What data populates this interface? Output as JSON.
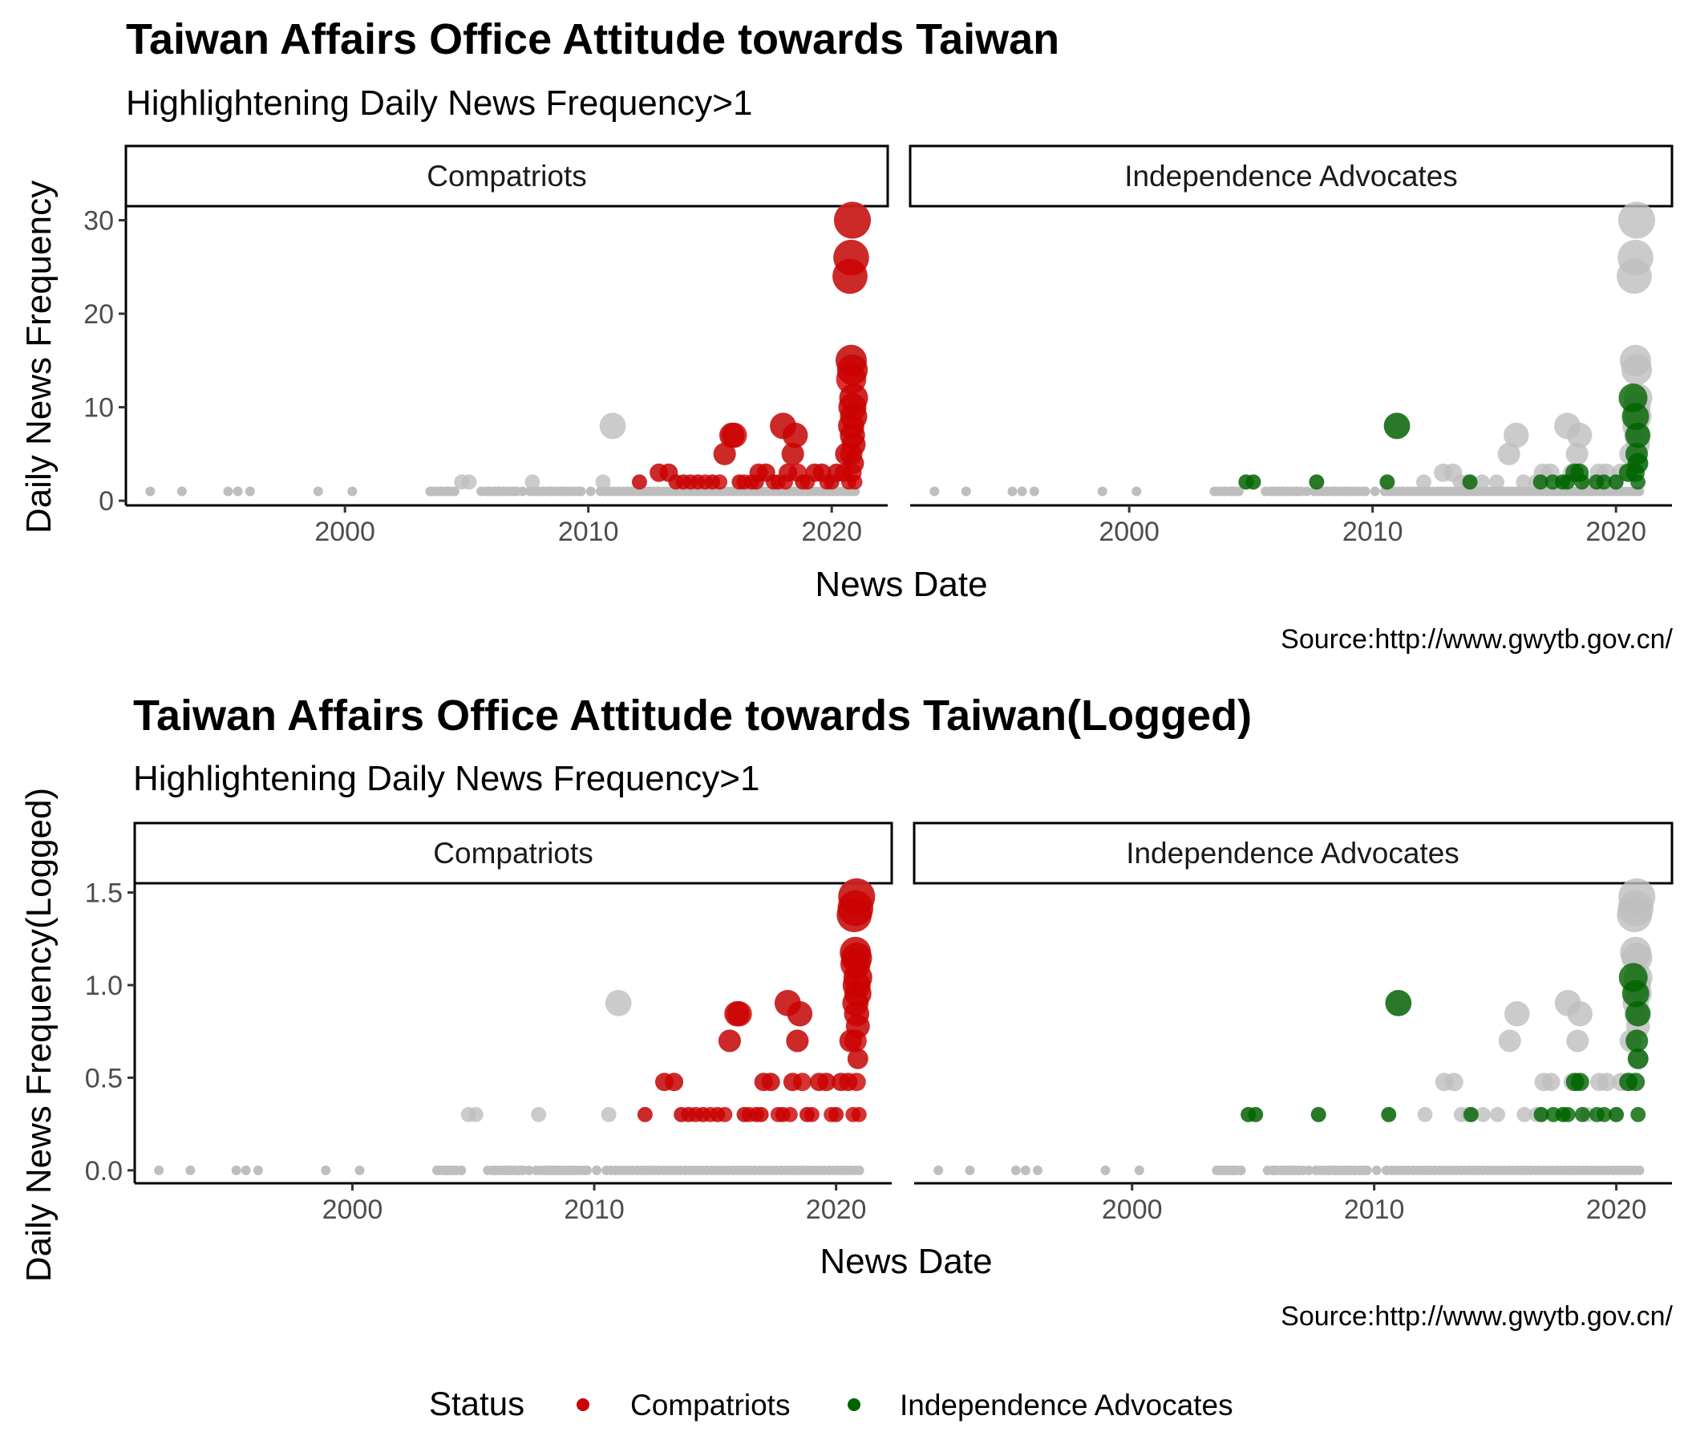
{
  "legend": {
    "title": "Status",
    "position": "bottom",
    "entries": [
      {
        "label": "Compatriots",
        "color": "#cc0000"
      },
      {
        "label": "Independence Advocates",
        "color": "#006400"
      }
    ]
  },
  "colors": {
    "background_point": "#bebebe",
    "compatriots": "#cc0000",
    "independence": "#006400"
  },
  "chart_data": [
    {
      "type": "scatter",
      "title": "Taiwan Affairs Office Attitude towards Taiwan",
      "subtitle": "Highlightening Daily News Frequency>1",
      "xlabel": "News Date",
      "ylabel": "Daily News Frequency",
      "caption": "Source:http://www.gwytb.gov.cn/",
      "xlim": [
        1991,
        2022.3
      ],
      "ylim": [
        -0.5,
        31.5
      ],
      "xticks": [
        2000,
        2010,
        2020
      ],
      "yticks": [
        0,
        10,
        20,
        30
      ],
      "facets": [
        "Compatriots",
        "Independence Advocates"
      ],
      "size_mapped_to": "y",
      "grid": false
    },
    {
      "type": "scatter",
      "title": "Taiwan Affairs Office Attitude towards Taiwan(Logged)",
      "subtitle": "Highlightening Daily News Frequency>1",
      "xlabel": "News Date",
      "ylabel": "Daily News Frequency(Logged)",
      "caption": "Source:http://www.gwytb.gov.cn/",
      "xlim": [
        1991,
        2022.3
      ],
      "ylim": [
        -0.07,
        1.55
      ],
      "xticks": [
        2000,
        2010,
        2020
      ],
      "yticks": [
        0.0,
        0.5,
        1.0,
        1.5
      ],
      "ytick_labels": [
        "0.0",
        "0.5",
        "1.0",
        "1.5"
      ],
      "y_transform": "log10",
      "facets": [
        "Compatriots",
        "Independence Advocates"
      ],
      "size_mapped_to": "y",
      "grid": false
    }
  ],
  "series": {
    "compatriots": {
      "name": "Compatriots",
      "points": [
        [
          2012.1,
          2
        ],
        [
          2012.9,
          3
        ],
        [
          2013.3,
          3
        ],
        [
          2013.6,
          2
        ],
        [
          2013.9,
          2
        ],
        [
          2014.2,
          2
        ],
        [
          2014.5,
          2
        ],
        [
          2014.8,
          2
        ],
        [
          2015.1,
          2
        ],
        [
          2015.4,
          2
        ],
        [
          2015.6,
          5
        ],
        [
          2015.9,
          7
        ],
        [
          2016.0,
          7
        ],
        [
          2016.2,
          2
        ],
        [
          2016.4,
          2
        ],
        [
          2016.7,
          2
        ],
        [
          2016.9,
          2
        ],
        [
          2017.0,
          3
        ],
        [
          2017.3,
          3
        ],
        [
          2017.6,
          2
        ],
        [
          2017.8,
          2
        ],
        [
          2018.0,
          8
        ],
        [
          2018.1,
          2
        ],
        [
          2018.2,
          3
        ],
        [
          2018.4,
          5
        ],
        [
          2018.5,
          7
        ],
        [
          2018.6,
          3
        ],
        [
          2018.8,
          2
        ],
        [
          2019.0,
          2
        ],
        [
          2019.3,
          3
        ],
        [
          2019.6,
          3
        ],
        [
          2019.8,
          2
        ],
        [
          2020.0,
          2
        ],
        [
          2020.2,
          3
        ],
        [
          2020.5,
          3
        ],
        [
          2020.6,
          5
        ],
        [
          2020.7,
          2
        ],
        [
          2020.75,
          24
        ],
        [
          2020.8,
          26
        ],
        [
          2020.85,
          30
        ],
        [
          2020.8,
          15
        ],
        [
          2020.85,
          14
        ],
        [
          2020.8,
          13
        ],
        [
          2020.9,
          11
        ],
        [
          2020.85,
          10
        ],
        [
          2020.9,
          9
        ],
        [
          2020.8,
          8
        ],
        [
          2020.85,
          7
        ],
        [
          2020.9,
          6
        ],
        [
          2020.8,
          5
        ],
        [
          2020.9,
          4
        ],
        [
          2020.85,
          3
        ],
        [
          2020.95,
          2
        ]
      ]
    },
    "independence": {
      "name": "Independence Advocates",
      "points": [
        [
          2004.8,
          2
        ],
        [
          2005.1,
          2
        ],
        [
          2007.7,
          2
        ],
        [
          2010.6,
          2
        ],
        [
          2011.0,
          8
        ],
        [
          2014.0,
          2
        ],
        [
          2016.9,
          2
        ],
        [
          2017.4,
          2
        ],
        [
          2017.8,
          2
        ],
        [
          2018.0,
          2
        ],
        [
          2018.3,
          3
        ],
        [
          2018.5,
          3
        ],
        [
          2018.6,
          2
        ],
        [
          2019.2,
          2
        ],
        [
          2019.5,
          2
        ],
        [
          2020.0,
          2
        ],
        [
          2020.5,
          3
        ],
        [
          2020.7,
          11
        ],
        [
          2020.8,
          9
        ],
        [
          2020.9,
          7
        ],
        [
          2020.85,
          5
        ],
        [
          2020.9,
          4
        ],
        [
          2020.8,
          3
        ],
        [
          2020.9,
          2
        ]
      ]
    },
    "background": {
      "single_points": [
        [
          1992.0,
          1
        ],
        [
          1993.3,
          1
        ],
        [
          1995.2,
          1
        ],
        [
          1995.6,
          1
        ],
        [
          1996.1,
          1
        ],
        [
          1998.9,
          1
        ],
        [
          2000.3,
          1
        ],
        [
          2003.5,
          1
        ],
        [
          2003.9,
          1
        ],
        [
          2004.2,
          1
        ],
        [
          2004.5,
          1
        ],
        [
          2005.6,
          1
        ],
        [
          2005.9,
          1
        ],
        [
          2006.3,
          1
        ],
        [
          2006.5,
          1
        ],
        [
          2006.9,
          1
        ],
        [
          2007.3,
          1
        ],
        [
          2008.1,
          1
        ],
        [
          2008.4,
          1
        ],
        [
          2008.9,
          1
        ],
        [
          2009.2,
          1
        ],
        [
          2009.7,
          1
        ],
        [
          2010.1,
          1
        ],
        [
          2010.5,
          1
        ]
      ],
      "single_ranges": [
        [
          2003.6,
          2004.6
        ],
        [
          2005.8,
          2007.2
        ],
        [
          2007.6,
          2009.6
        ],
        [
          2010.7,
          2021.0
        ]
      ],
      "multi_points": [
        [
          2004.8,
          2
        ],
        [
          2005.1,
          2
        ],
        [
          2007.7,
          2
        ],
        [
          2010.6,
          2
        ],
        [
          2011.0,
          8
        ],
        [
          2012.1,
          2
        ],
        [
          2012.9,
          3
        ],
        [
          2013.3,
          3
        ],
        [
          2013.6,
          2
        ],
        [
          2013.9,
          2
        ],
        [
          2014.0,
          2
        ],
        [
          2014.5,
          2
        ],
        [
          2015.1,
          2
        ],
        [
          2015.6,
          5
        ],
        [
          2015.9,
          7
        ],
        [
          2016.2,
          2
        ],
        [
          2016.7,
          2
        ],
        [
          2016.9,
          2
        ],
        [
          2017.0,
          3
        ],
        [
          2017.3,
          3
        ],
        [
          2017.8,
          2
        ],
        [
          2018.0,
          8
        ],
        [
          2018.2,
          3
        ],
        [
          2018.4,
          5
        ],
        [
          2018.5,
          7
        ],
        [
          2018.8,
          2
        ],
        [
          2019.3,
          3
        ],
        [
          2019.6,
          3
        ],
        [
          2020.0,
          2
        ],
        [
          2020.2,
          3
        ],
        [
          2020.5,
          3
        ],
        [
          2020.6,
          5
        ],
        [
          2020.75,
          24
        ],
        [
          2020.8,
          26
        ],
        [
          2020.85,
          30
        ],
        [
          2020.8,
          15
        ],
        [
          2020.85,
          14
        ],
        [
          2020.9,
          11
        ],
        [
          2020.85,
          10
        ],
        [
          2020.9,
          9
        ],
        [
          2020.8,
          8
        ],
        [
          2020.85,
          7
        ],
        [
          2020.9,
          6
        ],
        [
          2020.9,
          4
        ]
      ]
    }
  }
}
